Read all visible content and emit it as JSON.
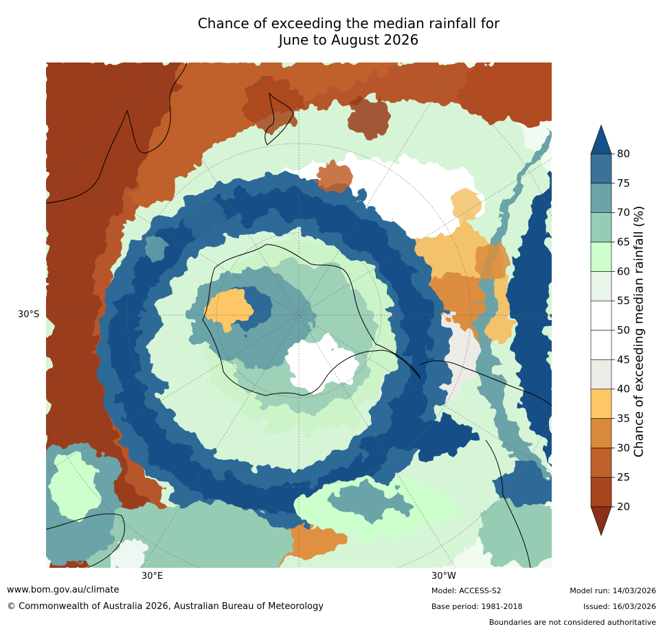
{
  "title": {
    "line1": "Chance of exceeding the median rainfall for",
    "line2": "June to August 2026"
  },
  "map": {
    "projection": "south-polar-stereographic",
    "lat_labels": [
      "30°S"
    ],
    "lon_labels": [
      "30°E",
      "30°W"
    ]
  },
  "colorbar": {
    "label": "Chance of exceeding median rainfall (%)",
    "ticks": [
      "20",
      "25",
      "30",
      "35",
      "40",
      "45",
      "50",
      "55",
      "60",
      "65",
      "70",
      "75",
      "80"
    ],
    "colors": [
      "#8b2f19",
      "#a9451f",
      "#c0602b",
      "#da8a3c",
      "#fdc766",
      "#ecebe6",
      "#ffffff",
      "#ffffff",
      "#e8f5e8",
      "#ccffcc",
      "#97ccb4",
      "#6aa3a8",
      "#3a7298",
      "#155089"
    ],
    "extend": "both"
  },
  "footer": {
    "website": "www.bom.gov.au/climate",
    "copyright": "© Commonwealth of Australia 2026, Australian Bureau of Meteorology",
    "model": "Model: ACCESS-S2",
    "base_period": "Base period: 1981-2018",
    "model_run": "Model run: 14/03/2026",
    "issued": "Issued: 16/03/2026",
    "disclaimer": "Boundaries are not considered authoritative"
  }
}
